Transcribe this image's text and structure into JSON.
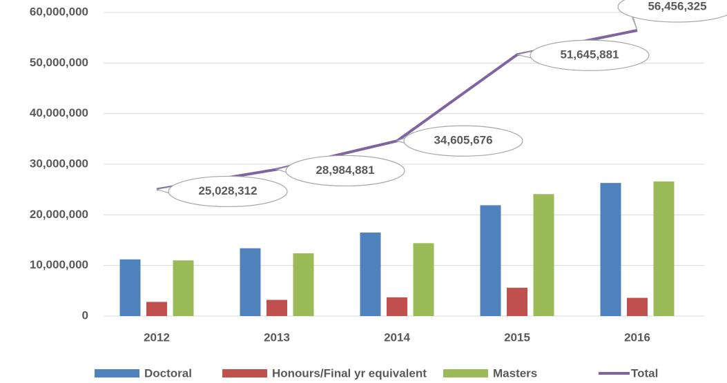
{
  "chart_data": {
    "type": "bar",
    "categories": [
      "2012",
      "2013",
      "2014",
      "2015",
      "2016"
    ],
    "series": [
      {
        "name": "Doctoral",
        "color": "#4f81bd",
        "values": [
          11200000,
          13400000,
          16500000,
          21900000,
          26300000
        ]
      },
      {
        "name": "Honours/Final yr equivalent",
        "color": "#c0504d",
        "values": [
          2800000,
          3200000,
          3700000,
          5600000,
          3600000
        ]
      },
      {
        "name": "Masters",
        "color": "#9bbb59",
        "values": [
          11000000,
          12400000,
          14400000,
          24100000,
          26600000
        ]
      },
      {
        "name": "Total",
        "color": "#8064a2",
        "type": "line",
        "values": [
          25028312,
          28984881,
          34605676,
          51645881,
          56456325
        ],
        "value_labels": [
          "25,028,312",
          "28,984,881",
          "34,605,676",
          "51,645,881",
          "56,456,325"
        ]
      }
    ],
    "ylim": [
      0,
      60000000
    ],
    "yticks": [
      0,
      {
        "value": 10000000,
        "label": "10,000,000"
      },
      {
        "value": 20000000,
        "label": "20,000,000"
      },
      {
        "value": 30000000,
        "label": "30,000,000"
      },
      {
        "value": 40000000,
        "label": "40,000,000"
      },
      {
        "value": 50000000,
        "label": "50,000,000"
      },
      {
        "value": 60000000,
        "label": "60,000,000"
      }
    ],
    "grid": true,
    "legend": "bottom"
  }
}
